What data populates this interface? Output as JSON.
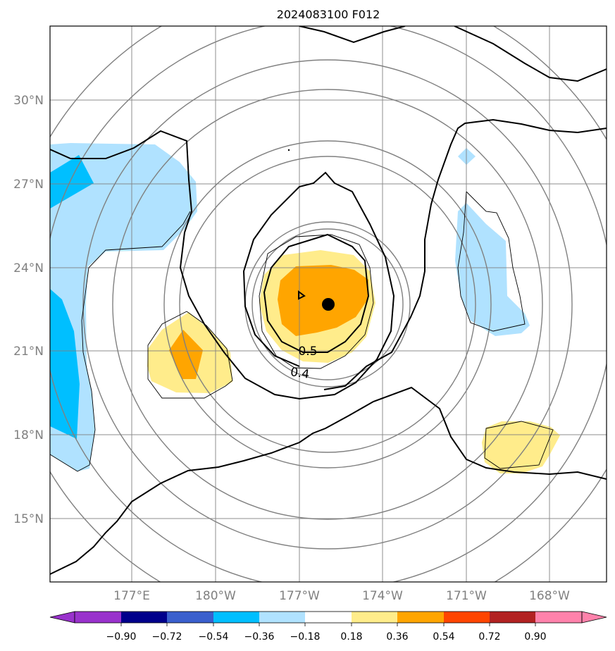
{
  "title": "2024083100 F012",
  "map": {
    "lat_ticks": [
      "30°N",
      "27°N",
      "24°N",
      "21°N",
      "18°N",
      "15°N"
    ],
    "lon_ticks": [
      "177°E",
      "180°W",
      "177°W",
      "174°W",
      "171°W",
      "168°W"
    ],
    "storm_center": {
      "lon": "176°W",
      "lat": "22.7°N"
    },
    "contour_labels": [
      "0.5",
      "0.4"
    ]
  },
  "colorbar": {
    "levels": [
      "−0.90",
      "−0.72",
      "−0.54",
      "−0.36",
      "−0.18",
      "0.18",
      "0.36",
      "0.54",
      "0.72",
      "0.90"
    ],
    "colors": [
      "#9932cc",
      "#00008b",
      "#3a5fcd",
      "#00bfff",
      "#b0e2ff",
      "#ffffff",
      "#ffec8b",
      "#ffa500",
      "#ff4500",
      "#b22222",
      "#ff82ab"
    ]
  },
  "colors": {
    "light_blue": "#b0e2ff",
    "deep_sky_blue": "#00bfff",
    "light_yellow": "#ffec8b",
    "orange": "#ffa500",
    "grid": "#808080",
    "range_rings": "#808080",
    "contour": "#000000"
  }
}
